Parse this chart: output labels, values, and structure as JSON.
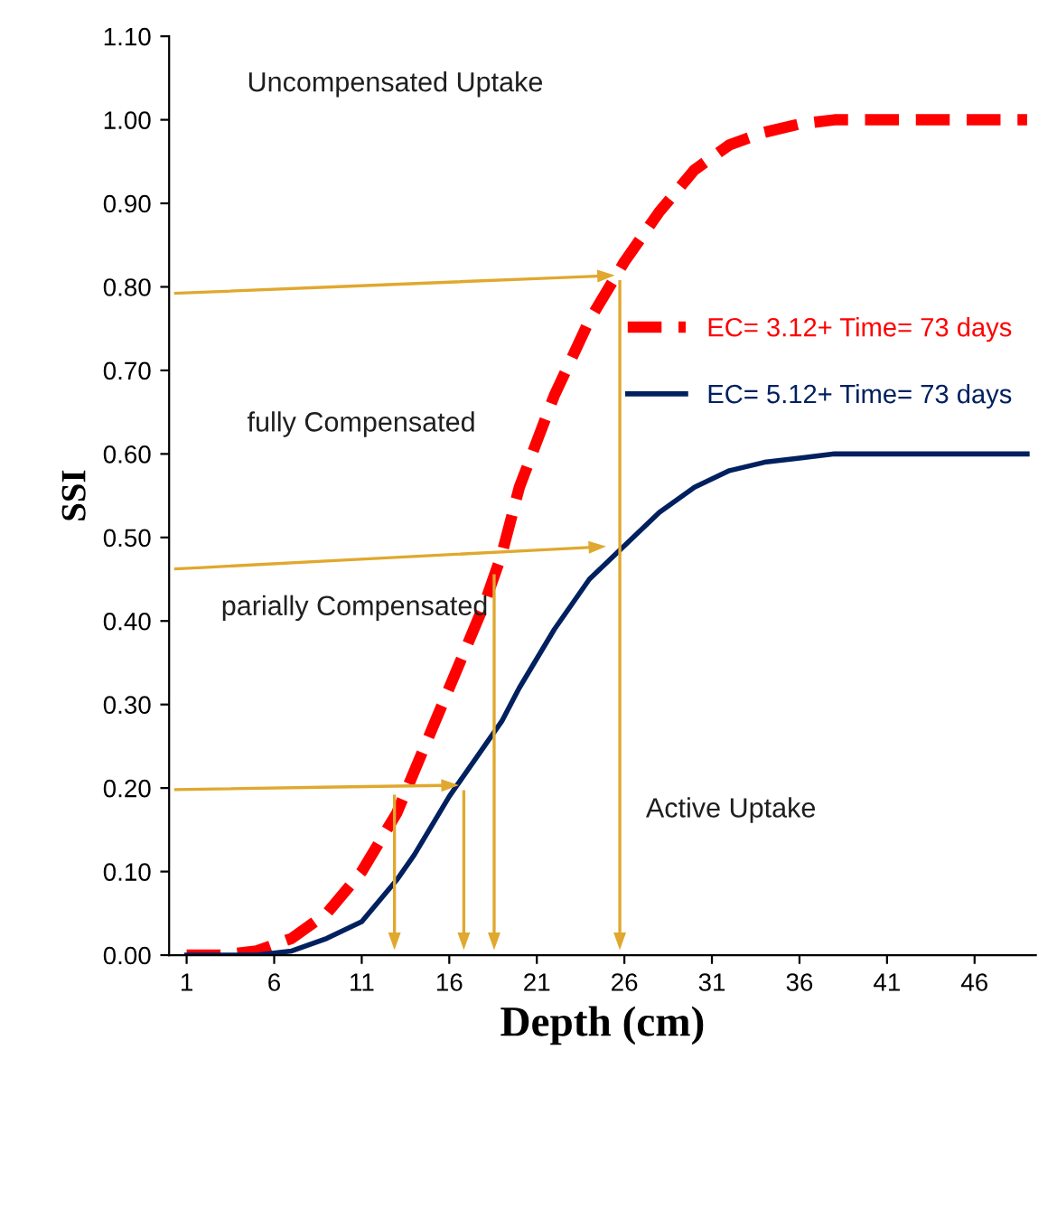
{
  "chart_data": {
    "type": "line",
    "xlabel": "Depth (cm)",
    "ylabel": "SSI",
    "xlim": [
      0,
      49.5
    ],
    "xticks": [
      1,
      6,
      11,
      16,
      21,
      26,
      31,
      36,
      41,
      46
    ],
    "ylim": [
      0,
      1.1
    ],
    "yticks": [
      {
        "value": 0,
        "label": "0.00"
      },
      {
        "value": 0.1,
        "label": "0.10"
      },
      {
        "value": 0.2,
        "label": "0.20"
      },
      {
        "value": 0.3,
        "label": "0.30"
      },
      {
        "value": 0.4,
        "label": "0.40"
      },
      {
        "value": 0.5,
        "label": "0.50"
      },
      {
        "value": 0.6,
        "label": "0.60"
      },
      {
        "value": 0.7,
        "label": "0.70"
      },
      {
        "value": 0.8,
        "label": "0.80"
      },
      {
        "value": 0.9,
        "label": "0.90"
      },
      {
        "value": 1.0,
        "label": "1.00"
      },
      {
        "value": 1.1,
        "label": "1.10"
      }
    ],
    "x": [
      1,
      3,
      5,
      7,
      9,
      11,
      13,
      14,
      16,
      18,
      19,
      20,
      22,
      24,
      26,
      28,
      30,
      32,
      34,
      36,
      38,
      42,
      46,
      49
    ],
    "series": [
      {
        "name": "EC= 3.12+ Time= 73 days",
        "color": "#ff0000",
        "line_style": "dashed",
        "values": [
          0,
          0,
          0.005,
          0.02,
          0.05,
          0.1,
          0.17,
          0.22,
          0.32,
          0.42,
          0.48,
          0.56,
          0.67,
          0.76,
          0.83,
          0.89,
          0.94,
          0.97,
          0.985,
          0.995,
          1.0,
          1.0,
          1.0,
          1.0
        ]
      },
      {
        "name": "EC= 5.12+ Time= 73 days",
        "color": "#002060",
        "line_style": "solid",
        "values": [
          0,
          0,
          0,
          0.005,
          0.02,
          0.04,
          0.09,
          0.12,
          0.19,
          0.25,
          0.28,
          0.32,
          0.39,
          0.45,
          0.49,
          0.53,
          0.56,
          0.58,
          0.59,
          0.595,
          0.6,
          0.6,
          0.6,
          0.6
        ]
      }
    ],
    "annotations": [
      "Uncompensated Uptake",
      "fully Compensated",
      "parially Compensated",
      "Active Uptake"
    ],
    "legend": "right",
    "grid": false,
    "marker": "none"
  }
}
